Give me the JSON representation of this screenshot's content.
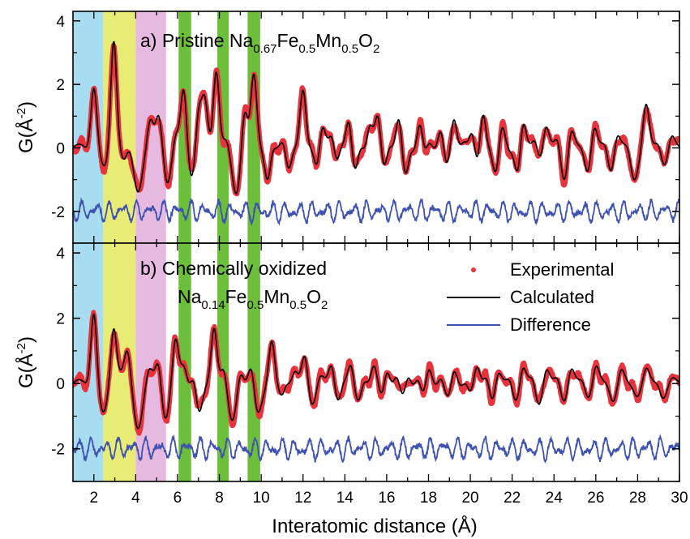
{
  "chart_data": {
    "type": "line",
    "xlabel": "Interatomic distance (Å)",
    "xlim": [
      1,
      30
    ],
    "xticks": [
      "2",
      "4",
      "6",
      "8",
      "10",
      "12",
      "14",
      "16",
      "18",
      "20",
      "22",
      "24",
      "26",
      "28",
      "30"
    ],
    "ylabel": {
      "main": "G(Å",
      "sup": "-2",
      "close": ")"
    },
    "ylim": [
      -3,
      4.3
    ],
    "yticks": [
      "-2",
      "0",
      "2",
      "4"
    ],
    "legend": {
      "placement": "right of panel b",
      "entries": [
        "Experimental",
        "Calculated",
        "Difference"
      ]
    },
    "series_colors": {
      "Experimental": "#e8323c",
      "Calculated": "#000000",
      "Difference": "#3f52b0"
    },
    "shaded_regions": [
      {
        "range": [
          1,
          2.45
        ],
        "color": "#a8dcf0"
      },
      {
        "range": [
          2.45,
          4.0
        ],
        "color": "#e8ec74"
      },
      {
        "range": [
          4.0,
          5.45
        ],
        "color": "#e6b9e0"
      },
      {
        "range": [
          6.05,
          6.65
        ],
        "color": "#6cbf3a"
      },
      {
        "range": [
          7.9,
          8.45
        ],
        "color": "#6cbf3a"
      },
      {
        "range": [
          9.35,
          9.95
        ],
        "color": "#6cbf3a"
      }
    ],
    "panels": [
      {
        "id": "a",
        "label_parts": [
          "a) Pristine Na",
          "0.67",
          "Fe",
          "0.5",
          "Mn",
          "0.5",
          "O",
          "2"
        ],
        "difference_offset": -2,
        "peaks": [
          [
            2.0,
            2.0
          ],
          [
            2.95,
            3.5
          ],
          [
            3.45,
            -0.4
          ],
          [
            3.65,
            0.0
          ],
          [
            4.7,
            0.8
          ],
          [
            5.1,
            1.0
          ],
          [
            5.3,
            0.3
          ],
          [
            5.9,
            0.4
          ],
          [
            6.3,
            1.9
          ],
          [
            7.0,
            1.3
          ],
          [
            7.3,
            1.4
          ],
          [
            7.85,
            2.5
          ],
          [
            8.3,
            0.2
          ],
          [
            9.2,
            1.3
          ],
          [
            9.65,
            2.2
          ],
          [
            10.1,
            0.2
          ],
          [
            10.5,
            1.0
          ],
          [
            11.1,
            0.5
          ],
          [
            11.5,
            0.3
          ],
          [
            12.0,
            1.7
          ],
          [
            12.5,
            0.3
          ],
          [
            12.9,
            1.0
          ],
          [
            13.4,
            0.6
          ],
          [
            13.8,
            0.4
          ],
          [
            14.2,
            1.0
          ],
          [
            14.7,
            0.5
          ],
          [
            15.2,
            0.7
          ],
          [
            15.6,
            1.3
          ],
          [
            16.1,
            0.3
          ],
          [
            16.6,
            1.1
          ],
          [
            17.1,
            0.4
          ],
          [
            17.6,
            1.0
          ],
          [
            18.0,
            0.3
          ],
          [
            18.6,
            0.8
          ],
          [
            19.2,
            1.0
          ],
          [
            19.7,
            0.3
          ],
          [
            20.1,
            0.8
          ],
          [
            20.6,
            1.3
          ],
          [
            21.0,
            0.4
          ],
          [
            21.5,
            0.8
          ],
          [
            22.1,
            0.3
          ],
          [
            22.5,
            1.2
          ],
          [
            23.1,
            0.4
          ],
          [
            23.6,
            0.8
          ],
          [
            24.2,
            0.5
          ],
          [
            24.8,
            0.7
          ],
          [
            25.4,
            0.3
          ],
          [
            25.9,
            0.8
          ],
          [
            26.5,
            0.4
          ],
          [
            27.0,
            0.6
          ],
          [
            27.6,
            0.3
          ],
          [
            28.4,
            1.3
          ],
          [
            29.0,
            0.3
          ],
          [
            29.6,
            0.4
          ]
        ],
        "troughs": [
          [
            2.5,
            -0.7
          ],
          [
            4.1,
            -1.3
          ],
          [
            5.5,
            -1.1
          ],
          [
            6.7,
            -0.9
          ],
          [
            8.8,
            -1.4
          ],
          [
            10.4,
            -1.5
          ],
          [
            11.3,
            -0.8
          ],
          [
            12.7,
            -0.8
          ],
          [
            13.6,
            -0.6
          ],
          [
            14.5,
            -1.0
          ],
          [
            15.8,
            -0.8
          ],
          [
            16.9,
            -1.1
          ],
          [
            17.8,
            -0.5
          ],
          [
            18.9,
            -0.7
          ],
          [
            20.3,
            -0.8
          ],
          [
            21.2,
            -1.0
          ],
          [
            22.3,
            -1.1
          ],
          [
            23.4,
            -0.4
          ],
          [
            24.5,
            -1.0
          ],
          [
            25.6,
            -0.8
          ],
          [
            26.7,
            -0.8
          ],
          [
            27.8,
            -1.0
          ],
          [
            29.3,
            -0.5
          ]
        ]
      },
      {
        "id": "b",
        "label_line1": "b) Chemically oxidized",
        "label_parts": [
          "Na",
          "0.14",
          "Fe",
          "0.5",
          "Mn",
          "0.5",
          "O",
          "2"
        ],
        "difference_offset": -2,
        "peaks": [
          [
            2.0,
            2.3
          ],
          [
            2.95,
            1.8
          ],
          [
            3.3,
            0.3
          ],
          [
            3.6,
            0.9
          ],
          [
            4.65,
            0.4
          ],
          [
            5.1,
            0.8
          ],
          [
            5.9,
            1.3
          ],
          [
            6.3,
            0.5
          ],
          [
            6.8,
            0.7
          ],
          [
            7.75,
            1.8
          ],
          [
            8.2,
            0.5
          ],
          [
            9.0,
            0.5
          ],
          [
            9.55,
            0.7
          ],
          [
            10.5,
            1.3
          ],
          [
            11.2,
            0.3
          ],
          [
            11.6,
            0.4
          ],
          [
            12.1,
            0.9
          ],
          [
            12.8,
            0.3
          ],
          [
            13.4,
            0.8
          ],
          [
            13.9,
            0.2
          ],
          [
            14.3,
            0.6
          ],
          [
            14.9,
            0.3
          ],
          [
            15.4,
            0.5
          ],
          [
            16.0,
            0.7
          ],
          [
            16.5,
            0.3
          ],
          [
            17.0,
            0.5
          ],
          [
            17.5,
            0.3
          ],
          [
            18.0,
            0.6
          ],
          [
            18.6,
            0.3
          ],
          [
            19.2,
            0.6
          ],
          [
            19.8,
            0.3
          ],
          [
            20.3,
            0.5
          ],
          [
            20.8,
            0.4
          ],
          [
            21.3,
            0.5
          ],
          [
            21.9,
            0.3
          ],
          [
            22.5,
            0.5
          ],
          [
            23.0,
            0.3
          ],
          [
            23.6,
            0.5
          ],
          [
            24.2,
            0.3
          ],
          [
            24.8,
            0.5
          ],
          [
            25.4,
            0.3
          ],
          [
            26.0,
            0.5
          ],
          [
            26.6,
            0.2
          ],
          [
            27.2,
            0.4
          ],
          [
            27.8,
            0.2
          ],
          [
            28.4,
            0.4
          ],
          [
            29.0,
            0.2
          ],
          [
            29.6,
            0.1
          ]
        ],
        "troughs": [
          [
            2.45,
            -1.0
          ],
          [
            4.1,
            -1.3
          ],
          [
            5.4,
            -1.0
          ],
          [
            7.0,
            -1.1
          ],
          [
            8.6,
            -1.2
          ],
          [
            9.8,
            -1.0
          ],
          [
            11.0,
            -0.5
          ],
          [
            12.4,
            -0.6
          ],
          [
            13.6,
            -0.6
          ],
          [
            14.6,
            -0.6
          ],
          [
            15.8,
            -0.5
          ],
          [
            16.8,
            -0.6
          ],
          [
            17.8,
            -0.5
          ],
          [
            19.0,
            -0.6
          ],
          [
            20.0,
            -0.4
          ],
          [
            21.1,
            -0.6
          ],
          [
            22.2,
            -0.5
          ],
          [
            23.3,
            -0.6
          ],
          [
            24.5,
            -0.5
          ],
          [
            25.6,
            -0.4
          ],
          [
            26.8,
            -0.5
          ],
          [
            27.9,
            -0.4
          ],
          [
            29.2,
            -0.4
          ]
        ]
      }
    ]
  }
}
